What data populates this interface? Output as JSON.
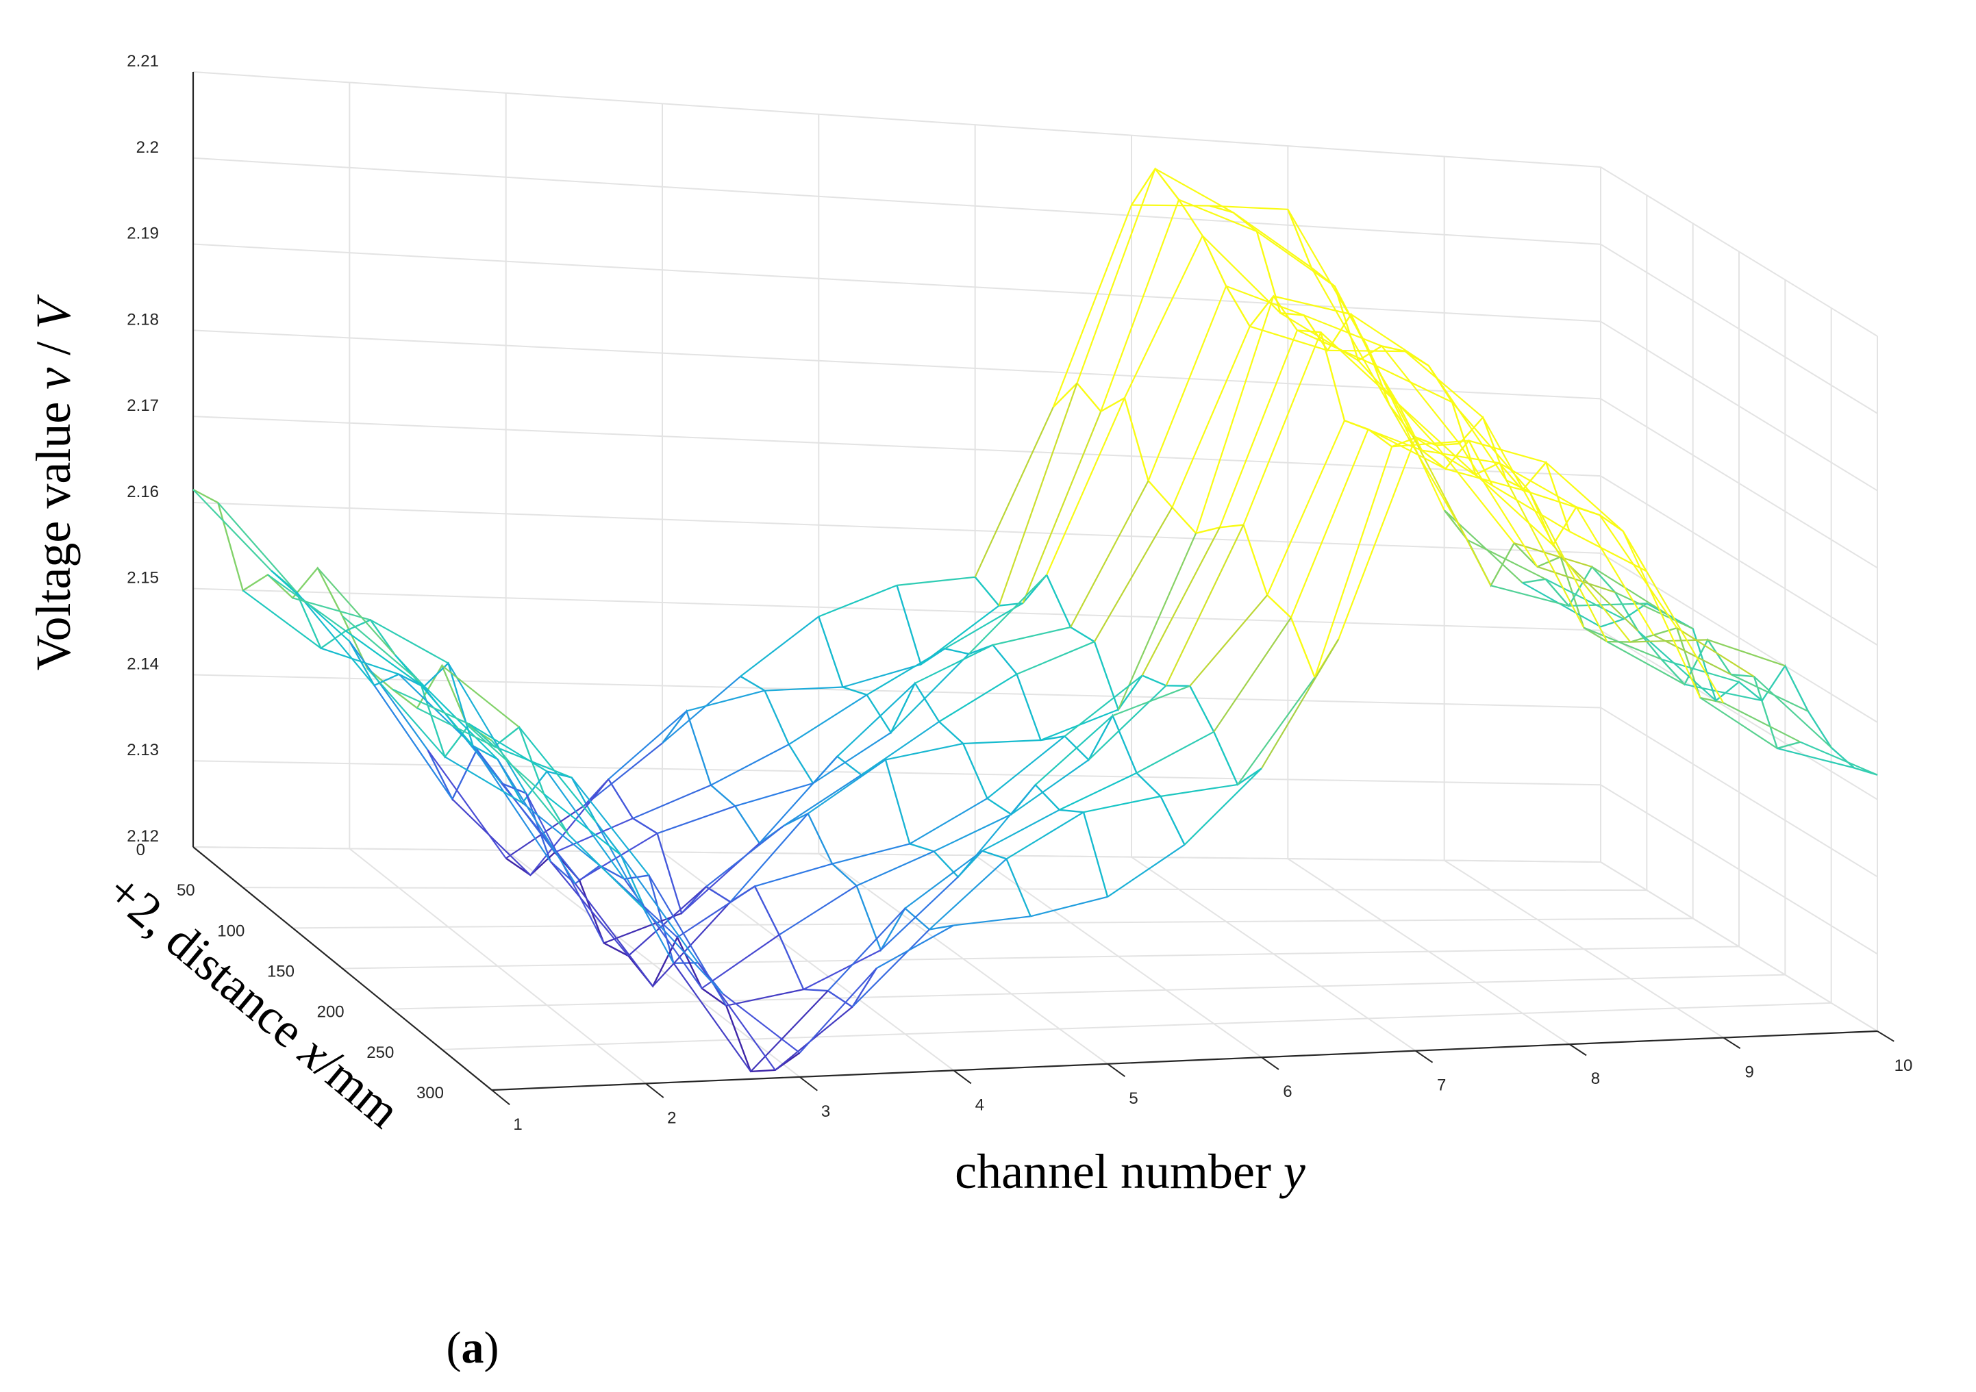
{
  "chart_data": {
    "type": "surface-mesh-3d",
    "panel_label": {
      "open": "(",
      "letter": "a",
      "close": ")"
    },
    "zlabel": {
      "text": "Voltage value ",
      "var": "v",
      "sep": " / ",
      "unit": "V"
    },
    "xlabel": {
      "text": "channel number ",
      "var": "y"
    },
    "ylabel": {
      "prefix": "+2, distance ",
      "var": "x",
      "unit": "/mm"
    },
    "channel_ticks": [
      "1",
      "2",
      "3",
      "4",
      "5",
      "6",
      "7",
      "8",
      "9",
      "10"
    ],
    "distance_ticks": [
      "0",
      "50",
      "100",
      "150",
      "200",
      "250",
      "300"
    ],
    "voltage_ticks": [
      "2.12",
      "2.13",
      "2.14",
      "2.15",
      "2.16",
      "2.17",
      "2.18",
      "2.19",
      "2.2",
      "2.21"
    ],
    "channel_range": [
      1,
      10
    ],
    "distance_range": [
      0,
      300
    ],
    "voltage_range": [
      2.12,
      2.21
    ],
    "grid": true,
    "colormap": "parula",
    "colormap_colors": [
      "#3e26a8",
      "#4a4fd8",
      "#2c7ee6",
      "#1ea8dc",
      "#14c4c8",
      "#3fd1a8",
      "#b5d23a",
      "#f9fb14"
    ],
    "profile_channels": [
      1,
      2,
      3,
      4,
      5,
      6,
      7,
      8,
      9,
      10
    ],
    "profile_voltages": [
      2.1595,
      2.1455,
      2.1205,
      2.1335,
      2.145,
      2.156,
      2.2055,
      2.197,
      2.164,
      2.155
    ],
    "distance_samples": [
      0,
      25,
      50,
      75,
      100,
      125,
      150,
      175,
      200,
      225,
      250,
      275,
      300
    ]
  }
}
